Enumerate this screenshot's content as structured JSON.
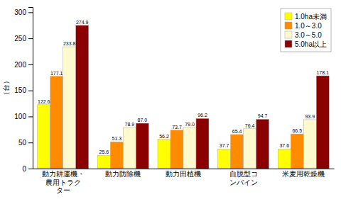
{
  "chart_data": {
    "type": "bar",
    "categories": [
      "動力耕運機・\n農用トラク\nター",
      "動力防除機",
      "動力田植機",
      "自脱型コ\nンバイン",
      "米麦用乾燥機"
    ],
    "series": [
      {
        "name": "1.0ha未満",
        "color": "#FFFF00",
        "values": [
          122.6,
          25.6,
          56.2,
          37.7,
          37.6
        ],
        "value_labels": [
          "122.6",
          "25.6",
          "56.2",
          "37.7",
          "37.6"
        ]
      },
      {
        "name": "1.0～3.0",
        "color": "#FF8C00",
        "values": [
          177.1,
          51.3,
          73.7,
          65.4,
          66.5
        ],
        "value_labels": [
          "177.1",
          "51.3",
          "73.7",
          "65.4",
          "66.5"
        ]
      },
      {
        "name": "3.0～5.0",
        "color": "#FFFACD",
        "values": [
          233.8,
          78.9,
          79.0,
          76.4,
          93.9
        ],
        "value_labels": [
          "233.8",
          "78.9",
          "79.0",
          "76.4",
          "93.9"
        ]
      },
      {
        "name": "5.0ha以上",
        "color": "#8B0000",
        "values": [
          274.9,
          87.0,
          96.2,
          94.7,
          178.1
        ],
        "value_labels": [
          "274.9",
          "87.0",
          "96.2",
          "94.7",
          "178.1"
        ]
      }
    ],
    "ylabel": "（台）",
    "ylim": [
      0,
      310
    ],
    "yticks": [
      0,
      50,
      100,
      150,
      200,
      250,
      300
    ],
    "data_labels": true,
    "legend": "upper right",
    "grid": false
  }
}
